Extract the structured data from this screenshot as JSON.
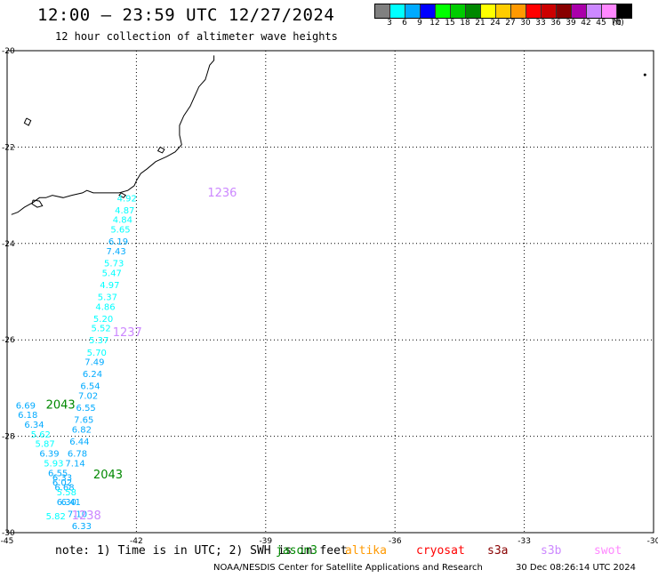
{
  "header": {
    "title": "12:00 — 23:59 UTC 12/27/2024",
    "subtitle": "12 hour collection of altimeter wave heights"
  },
  "colorbar": {
    "colors": [
      "#808080",
      "#00ffff",
      "#00aaff",
      "#0000ff",
      "#00ff00",
      "#00cc00",
      "#008800",
      "#ffff00",
      "#ffcc00",
      "#ff9900",
      "#ff0000",
      "#cc0000",
      "#880000",
      "#aa00aa",
      "#cc88ff",
      "#ff88ff",
      "#000000"
    ],
    "labels": [
      "3",
      "6",
      "9",
      "12",
      "15",
      "18",
      "21",
      "24",
      "27",
      "30",
      "33",
      "36",
      "39",
      "42",
      "45",
      "70",
      "(ft)"
    ]
  },
  "chart_data": {
    "type": "scatter",
    "xlim": [
      -45,
      -30
    ],
    "ylim": [
      -30,
      -20
    ],
    "x_ticks": [
      "-45",
      "-42",
      "-39",
      "-36",
      "-33",
      "-30"
    ],
    "y_ticks": [
      "-20",
      "-22",
      "-24",
      "-26",
      "-28",
      "-30"
    ],
    "grid": true,
    "tracks": [
      {
        "satellite": "sentinel-3b",
        "time_label": "1236",
        "points": [
          {
            "lon": -42.45,
            "lat": -23.05,
            "swh": "4.92"
          },
          {
            "lon": -42.5,
            "lat": -23.3,
            "swh": "4.87"
          },
          {
            "lon": -42.55,
            "lat": -23.5,
            "swh": "4.84"
          },
          {
            "lon": -42.6,
            "lat": -23.7,
            "swh": "5.65"
          },
          {
            "lon": -42.65,
            "lat": -23.95,
            "swh": "6.19"
          },
          {
            "lon": -42.7,
            "lat": -24.15,
            "swh": "7.43"
          },
          {
            "lon": -42.75,
            "lat": -24.4,
            "swh": "5.73"
          },
          {
            "lon": -42.8,
            "lat": -24.6,
            "swh": "5.47"
          },
          {
            "lon": -42.85,
            "lat": -24.85,
            "swh": "4.97"
          },
          {
            "lon": -42.9,
            "lat": -25.1,
            "swh": "5.37"
          },
          {
            "lon": -42.95,
            "lat": -25.3,
            "swh": "4.86"
          },
          {
            "lon": -43.0,
            "lat": -25.55,
            "swh": "5.20"
          },
          {
            "lon": -43.05,
            "lat": -25.75,
            "swh": "5.52"
          }
        ]
      },
      {
        "satellite": "sentinel-3b",
        "time_label": "1237",
        "points": [
          {
            "lon": -43.1,
            "lat": -26.0,
            "swh": "5.37"
          },
          {
            "lon": -43.15,
            "lat": -26.25,
            "swh": "5.70"
          },
          {
            "lon": -43.2,
            "lat": -26.45,
            "swh": "7.49"
          },
          {
            "lon": -43.25,
            "lat": -26.7,
            "swh": "6.24"
          },
          {
            "lon": -43.3,
            "lat": -26.95,
            "swh": "6.54"
          },
          {
            "lon": -43.35,
            "lat": -27.15,
            "swh": "7.02"
          },
          {
            "lon": -43.4,
            "lat": -27.4,
            "swh": "6.55"
          },
          {
            "lon": -43.45,
            "lat": -27.65,
            "swh": "7.65"
          },
          {
            "lon": -43.5,
            "lat": -27.85,
            "swh": "6.82"
          },
          {
            "lon": -43.55,
            "lat": -28.1,
            "swh": "6.44"
          },
          {
            "lon": -43.6,
            "lat": -28.35,
            "swh": "6.78"
          },
          {
            "lon": -43.65,
            "lat": -28.55,
            "swh": "7.14"
          }
        ]
      },
      {
        "satellite": "jason-3",
        "time_label": "2043",
        "points": [
          {
            "lon": -44.8,
            "lat": -27.35,
            "swh": "6.69"
          },
          {
            "lon": -44.75,
            "lat": -27.55,
            "swh": "6.18"
          },
          {
            "lon": -44.6,
            "lat": -27.75,
            "swh": "6.34"
          },
          {
            "lon": -44.45,
            "lat": -27.95,
            "swh": "5.62"
          },
          {
            "lon": -44.35,
            "lat": -28.15,
            "swh": "5.87"
          },
          {
            "lon": -44.25,
            "lat": -28.35,
            "swh": "6.39"
          },
          {
            "lon": -44.15,
            "lat": -28.55,
            "swh": "5.93"
          }
        ]
      },
      {
        "satellite": "jason-3",
        "time_label": "2043",
        "points": [
          {
            "lon": -44.05,
            "lat": -28.75,
            "swh": "6.55"
          },
          {
            "lon": -43.95,
            "lat": -28.85,
            "swh": "6.33"
          },
          {
            "lon": -43.95,
            "lat": -28.95,
            "swh": "6.02"
          },
          {
            "lon": -43.9,
            "lat": -29.05,
            "swh": "6.68"
          },
          {
            "lon": -43.85,
            "lat": -29.15,
            "swh": "5.58"
          },
          {
            "lon": -43.85,
            "lat": -29.35,
            "swh": "6.30"
          },
          {
            "lon": -43.75,
            "lat": -29.35,
            "swh": "6.41"
          },
          {
            "lon": -43.6,
            "lat": -29.6,
            "swh": "7.10"
          },
          {
            "lon": -44.1,
            "lat": -29.65,
            "swh": "5.82"
          },
          {
            "lon": -43.5,
            "lat": -29.85,
            "swh": "6.33"
          }
        ]
      },
      {
        "satellite": "sentinel-3b",
        "time_label": "1238",
        "points": []
      }
    ],
    "time_labels": [
      {
        "text": "1236",
        "lon": -40.35,
        "lat": -22.95,
        "satellite": "sentinel-3b"
      },
      {
        "text": "1237",
        "lon": -42.55,
        "lat": -25.85,
        "satellite": "sentinel-3b"
      },
      {
        "text": "2043",
        "lon": -44.1,
        "lat": -27.35,
        "satellite": "jason-3"
      },
      {
        "text": "2043",
        "lon": -43.0,
        "lat": -28.8,
        "satellite": "jason-3"
      },
      {
        "text": "1238",
        "lon": -43.5,
        "lat": -29.65,
        "satellite": "sentinel-3b"
      }
    ]
  },
  "map": {
    "coastline": [
      [
        -40.2,
        -20.1
      ],
      [
        -40.2,
        -20.2
      ],
      [
        -40.3,
        -20.3
      ],
      [
        -40.35,
        -20.45
      ],
      [
        -40.4,
        -20.6
      ],
      [
        -40.55,
        -20.75
      ],
      [
        -40.65,
        -20.95
      ],
      [
        -40.75,
        -21.15
      ],
      [
        -40.9,
        -21.35
      ],
      [
        -41.0,
        -21.55
      ],
      [
        -41.0,
        -21.75
      ],
      [
        -40.95,
        -21.95
      ],
      [
        -41.1,
        -22.1
      ],
      [
        -41.3,
        -22.2
      ],
      [
        -41.55,
        -22.3
      ],
      [
        -41.75,
        -22.45
      ],
      [
        -41.9,
        -22.55
      ],
      [
        -42.0,
        -22.7
      ],
      [
        -42.05,
        -22.8
      ],
      [
        -42.2,
        -22.9
      ],
      [
        -42.4,
        -22.95
      ],
      [
        -42.7,
        -22.95
      ],
      [
        -43.0,
        -22.95
      ],
      [
        -43.15,
        -22.9
      ],
      [
        -43.25,
        -22.95
      ],
      [
        -43.5,
        -23.0
      ],
      [
        -43.7,
        -23.05
      ],
      [
        -43.95,
        -23.0
      ],
      [
        -44.1,
        -23.05
      ],
      [
        -44.25,
        -23.05
      ],
      [
        -44.4,
        -23.15
      ],
      [
        -44.6,
        -23.25
      ],
      [
        -44.75,
        -23.35
      ],
      [
        -44.9,
        -23.4
      ]
    ],
    "islands": [
      [
        [
          -44.4,
          -23.1
        ],
        [
          -44.25,
          -23.12
        ],
        [
          -44.18,
          -23.22
        ],
        [
          -44.3,
          -23.25
        ],
        [
          -44.42,
          -23.18
        ],
        [
          -44.4,
          -23.1
        ]
      ],
      [
        [
          -44.55,
          -21.4
        ],
        [
          -44.45,
          -21.45
        ],
        [
          -44.5,
          -21.55
        ],
        [
          -44.6,
          -21.5
        ],
        [
          -44.55,
          -21.4
        ]
      ],
      [
        [
          -41.45,
          -22.0
        ],
        [
          -41.35,
          -22.05
        ],
        [
          -41.4,
          -22.12
        ],
        [
          -41.5,
          -22.08
        ],
        [
          -41.45,
          -22.0
        ]
      ],
      [
        [
          -42.35,
          -22.95
        ],
        [
          -42.25,
          -23.0
        ],
        [
          -42.3,
          -23.05
        ],
        [
          -42.4,
          -23.0
        ],
        [
          -42.35,
          -22.95
        ]
      ]
    ],
    "markers": [
      {
        "lon": -30.2,
        "lat": -20.5
      }
    ]
  },
  "footer": {
    "note": "note: 1) Time is in UTC; 2) SWH is in feet",
    "legend": [
      {
        "name": "jason3",
        "color": "#008800"
      },
      {
        "name": "altika",
        "color": "#ff9900"
      },
      {
        "name": "cryosat",
        "color": "#ff0000"
      },
      {
        "name": "s3a",
        "color": "#880000"
      },
      {
        "name": "s3b",
        "color": "#cc88ff"
      },
      {
        "name": "swot",
        "color": "#ff88ff"
      }
    ],
    "credit": "NOAA/NESDIS Center for Satellite Applications and Research",
    "timestamp": "30 Dec 08:26:14 UTC 2024"
  }
}
